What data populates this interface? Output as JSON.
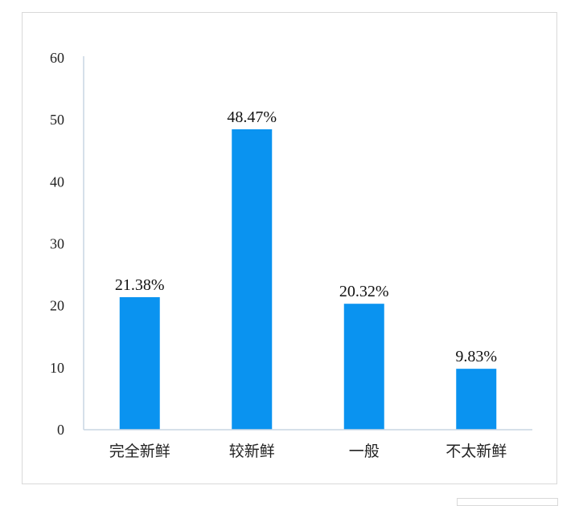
{
  "chart_data": {
    "type": "bar",
    "categories": [
      "完全新鲜",
      "较新鲜",
      "一般",
      "不太新鲜"
    ],
    "values": [
      21.38,
      48.47,
      20.32,
      9.83
    ],
    "value_labels": [
      "21.38%",
      "48.47%",
      "20.32%",
      "9.83%"
    ],
    "ylim": [
      0,
      60
    ],
    "yticks": [
      0,
      10,
      20,
      30,
      40,
      50,
      60
    ],
    "bar_color": "#0a93f0",
    "axis_color": "#c9d6e3",
    "grid": false,
    "legend": "none"
  }
}
